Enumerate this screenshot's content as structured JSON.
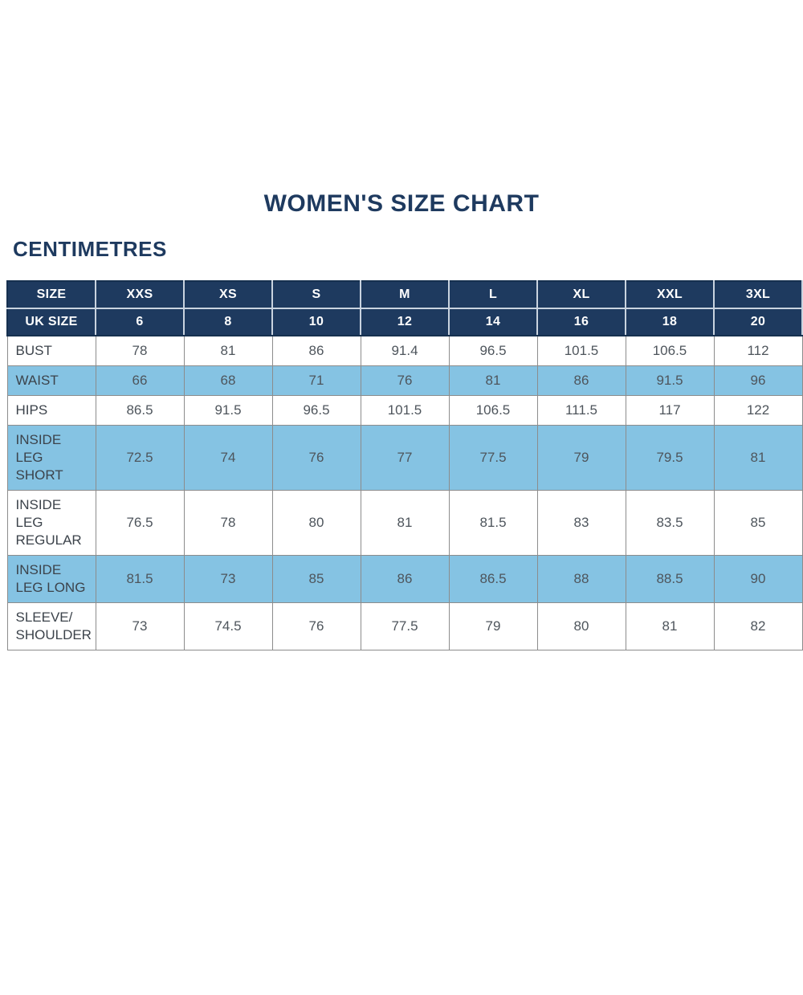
{
  "page": {
    "title": "WOMEN'S SIZE CHART",
    "subtitle": "CENTIMETRES"
  },
  "colors": {
    "navy": "#1E3A5F",
    "navy_dark": "#16304F",
    "light_blue": "#85C3E3",
    "grid_line": "#8C8C8C",
    "header_divider": "#C9D3DF",
    "label_text": "#3C434B",
    "value_text": "#4E555C",
    "page_bg": "#FFFFFF"
  },
  "chart_data": {
    "type": "table",
    "title": "WOMEN'S SIZE CHART",
    "units": "CENTIMETRES",
    "header_rows": [
      {
        "label": "SIZE",
        "values": [
          "XXS",
          "XS",
          "S",
          "M",
          "L",
          "XL",
          "XXL",
          "3XL"
        ]
      },
      {
        "label": "UK SIZE",
        "values": [
          "6",
          "8",
          "10",
          "12",
          "14",
          "16",
          "18",
          "20"
        ]
      }
    ],
    "rows": [
      {
        "label": "BUST",
        "values": [
          "78",
          "81",
          "86",
          "91.4",
          "96.5",
          "101.5",
          "106.5",
          "112"
        ],
        "highlight": false
      },
      {
        "label": "WAIST",
        "values": [
          "66",
          "68",
          "71",
          "76",
          "81",
          "86",
          "91.5",
          "96"
        ],
        "highlight": true
      },
      {
        "label": "HIPS",
        "values": [
          "86.5",
          "91.5",
          "96.5",
          "101.5",
          "106.5",
          "111.5",
          "117",
          "122"
        ],
        "highlight": false
      },
      {
        "label": "INSIDE LEG SHORT",
        "values": [
          "72.5",
          "74",
          "76",
          "77",
          "77.5",
          "79",
          "79.5",
          "81"
        ],
        "highlight": true
      },
      {
        "label": "INSIDE LEG REGULAR",
        "values": [
          "76.5",
          "78",
          "80",
          "81",
          "81.5",
          "83",
          "83.5",
          "85"
        ],
        "highlight": false
      },
      {
        "label": "INSIDE LEG LONG",
        "values": [
          "81.5",
          "73",
          "85",
          "86",
          "86.5",
          "88",
          "88.5",
          "90"
        ],
        "highlight": true
      },
      {
        "label": "SLEEVE/ SHOULDER",
        "values": [
          "73",
          "74.5",
          "76",
          "77.5",
          "79",
          "80",
          "81",
          "82"
        ],
        "highlight": false
      }
    ]
  }
}
